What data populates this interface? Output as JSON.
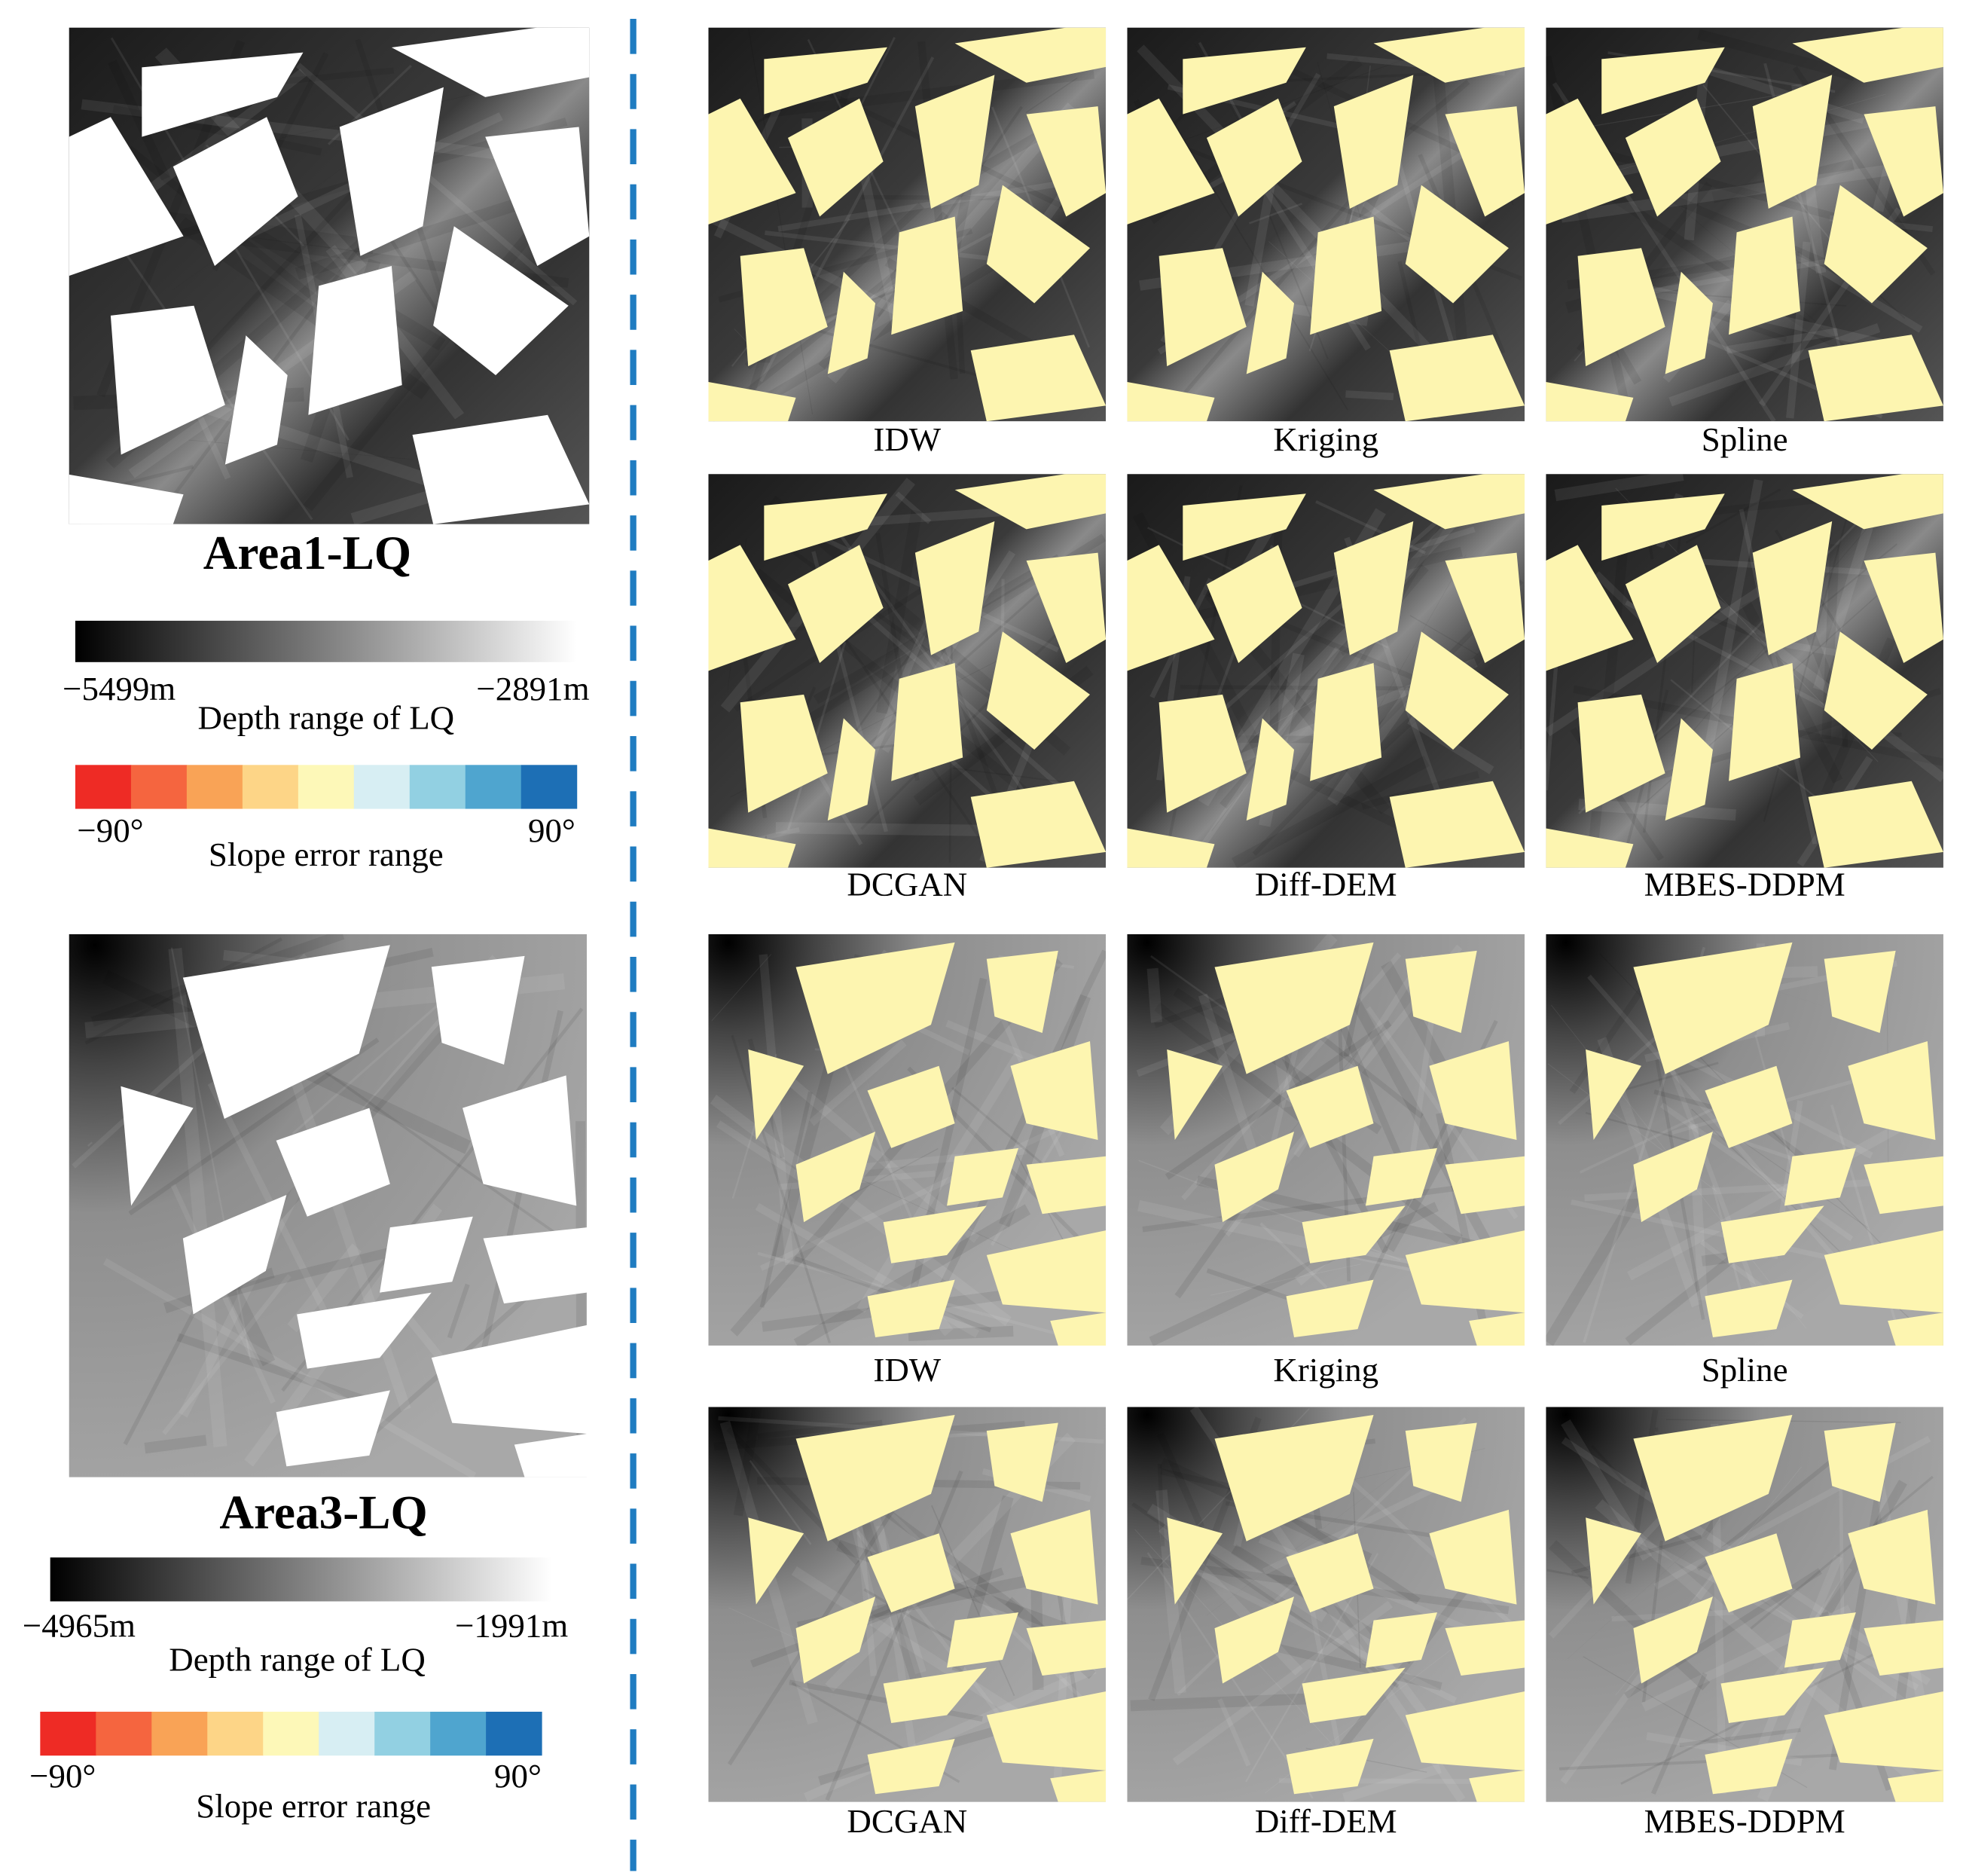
{
  "left_panels": [
    {
      "title": "Area1-LQ",
      "depth_min_label": "−5499m",
      "depth_max_label": "−2891m",
      "depth_caption": "Depth range of LQ",
      "slope_min_label": "−90°",
      "slope_max_label": "90°",
      "slope_caption": "Slope error range"
    },
    {
      "title": "Area3-LQ",
      "depth_min_label": "−4965m",
      "depth_max_label": "−1991m",
      "depth_caption": "Depth range of LQ",
      "slope_min_label": "−90°",
      "slope_max_label": "90°",
      "slope_caption": "Slope error range"
    }
  ],
  "result_rows": [
    [
      "IDW",
      "Kriging",
      "Spline"
    ],
    [
      "DCGAN",
      "Diff-DEM",
      "MBES-DDPM"
    ],
    [
      "IDW",
      "Kriging",
      "Spline"
    ],
    [
      "DCGAN",
      "Diff-DEM",
      "MBES-DDPM"
    ]
  ]
}
